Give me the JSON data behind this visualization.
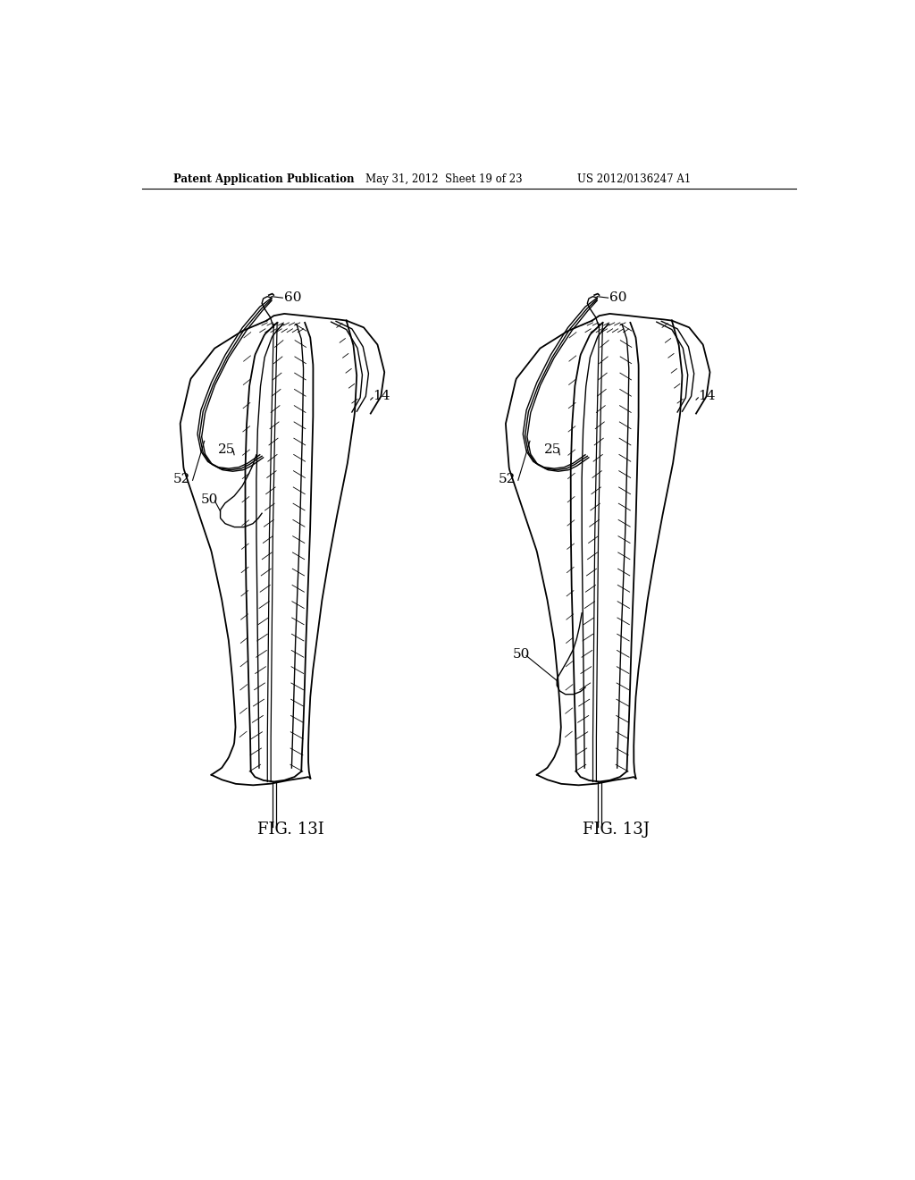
{
  "background_color": "#ffffff",
  "header_left": "Patent Application Publication",
  "header_middle": "May 31, 2012  Sheet 19 of 23",
  "header_right": "US 2012/0136247 A1",
  "fig1_label": "FIG. 13I",
  "fig2_label": "FIG. 13J",
  "label_60": "60",
  "label_14": "14",
  "label_25": "25",
  "label_52": "52",
  "label_50": "50"
}
